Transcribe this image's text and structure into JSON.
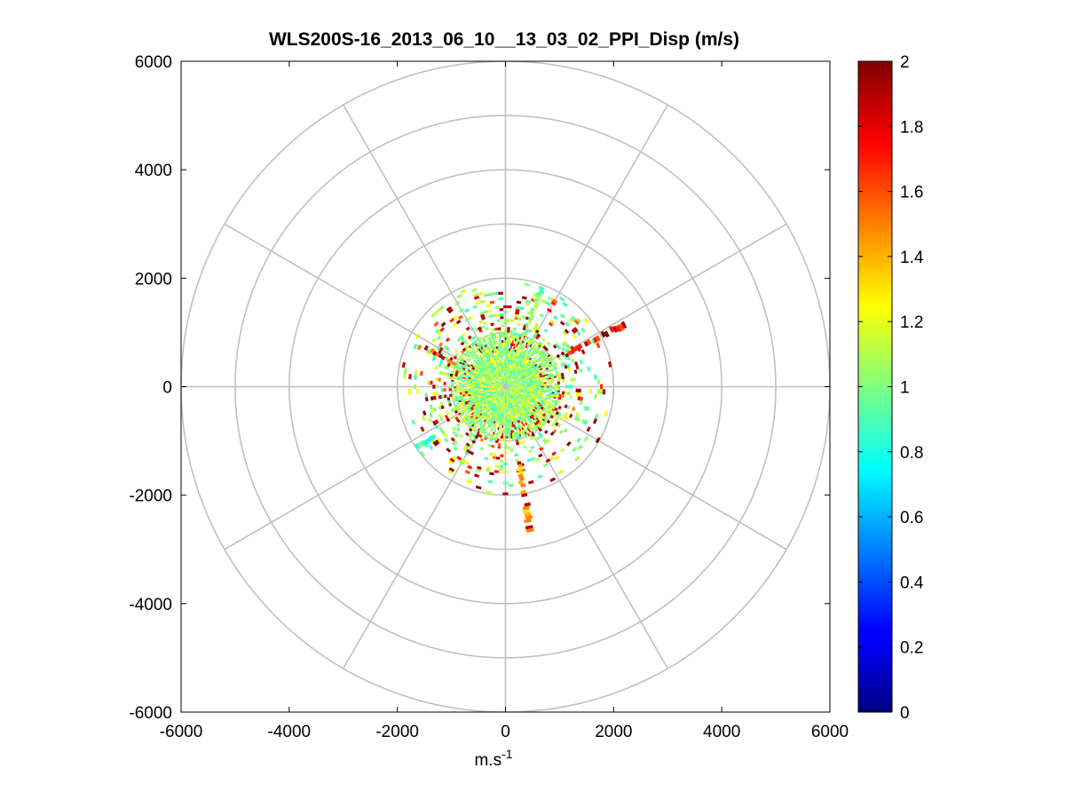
{
  "chart_data": {
    "type": "polar-heatmap",
    "title": "WLS200S-16_2013_06_10__13_03_02_PPI_Disp (m/s)",
    "xlabel": "m.s",
    "xlabel_superscript": "-1",
    "ylabel": "",
    "xlim": [
      -6000,
      6000
    ],
    "ylim": [
      -6000,
      6000
    ],
    "xticks": [
      "-6000",
      "-4000",
      "-2000",
      "0",
      "2000",
      "4000",
      "6000"
    ],
    "yticks": [
      "6000",
      "4000",
      "2000",
      "0",
      "-2000",
      "-4000",
      "-6000"
    ],
    "polar_grid": {
      "ring_radii": [
        1000,
        2000,
        3000,
        4000,
        5000,
        6000
      ],
      "spoke_angles_deg": [
        0,
        30,
        60,
        90,
        120,
        150,
        180,
        210,
        240,
        270,
        300,
        330
      ]
    },
    "colorbar": {
      "colormap": "jet",
      "range": [
        0,
        2
      ],
      "tick_labels": [
        "0",
        "0.2",
        "0.4",
        "0.6",
        "0.8",
        "1",
        "1.2",
        "1.4",
        "1.6",
        "1.8",
        "2"
      ]
    },
    "data_summary": {
      "typical_value": 1.05,
      "dense_core_radius": 1000,
      "scattered_extent_radius": 2000,
      "sector_span_deg": 360,
      "extended_plumes": [
        {
          "bearing_deg": 62,
          "range_from": 1300,
          "range_to": 2500,
          "values": [
            1.6,
            1.7,
            1.9,
            2.0
          ]
        },
        {
          "bearing_deg": 170,
          "range_from": 1400,
          "range_to": 2700,
          "values": [
            1.3,
            1.4,
            1.5,
            1.9
          ]
        },
        {
          "bearing_deg": 235,
          "range_from": 1400,
          "range_to": 2000,
          "values": [
            0.75,
            0.8,
            0.9,
            1.0
          ]
        },
        {
          "bearing_deg": 295,
          "range_from": 1000,
          "range_to": 1800,
          "values": [
            1.0,
            1.5,
            1.9
          ]
        },
        {
          "bearing_deg": 20,
          "range_from": 1000,
          "range_to": 2000,
          "values": [
            0.9,
            1.0,
            1.1
          ]
        }
      ]
    }
  }
}
